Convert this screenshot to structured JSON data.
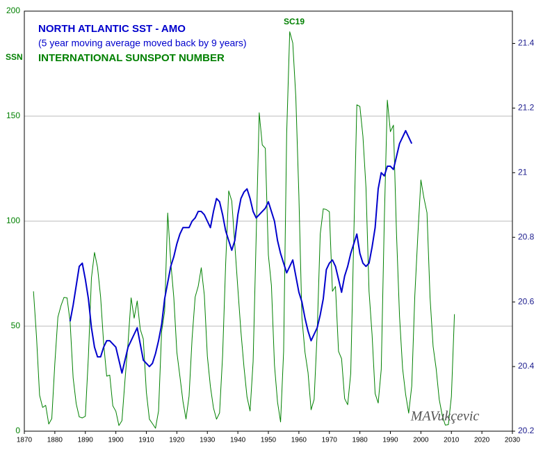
{
  "chart_data": {
    "type": "line",
    "title": "NORTH ATLANTIC SST - AMO",
    "subtitle": "(5 year moving average moved back by 9 years)",
    "ylabel": "SSN",
    "annotations": [
      "SC19",
      "MAVukçevic"
    ],
    "x": [
      1873,
      1874,
      1875,
      1876,
      1877,
      1878,
      1879,
      1880,
      1881,
      1882,
      1883,
      1884,
      1885,
      1886,
      1887,
      1888,
      1889,
      1890,
      1891,
      1892,
      1893,
      1894,
      1895,
      1896,
      1897,
      1898,
      1899,
      1900,
      1901,
      1902,
      1903,
      1904,
      1905,
      1906,
      1907,
      1908,
      1909,
      1910,
      1911,
      1912,
      1913,
      1914,
      1915,
      1916,
      1917,
      1918,
      1919,
      1920,
      1921,
      1922,
      1923,
      1924,
      1925,
      1926,
      1927,
      1928,
      1929,
      1930,
      1931,
      1932,
      1933,
      1934,
      1935,
      1936,
      1937,
      1938,
      1939,
      1940,
      1941,
      1942,
      1943,
      1944,
      1945,
      1946,
      1947,
      1948,
      1949,
      1950,
      1951,
      1952,
      1953,
      1954,
      1955,
      1956,
      1957,
      1958,
      1959,
      1960,
      1961,
      1962,
      1963,
      1964,
      1965,
      1966,
      1967,
      1968,
      1969,
      1970,
      1971,
      1972,
      1973,
      1974,
      1975,
      1976,
      1977,
      1978,
      1979,
      1980,
      1981,
      1982,
      1983,
      1984,
      1985,
      1986,
      1987,
      1988,
      1989,
      1990,
      1991,
      1992,
      1993,
      1994,
      1995,
      1996,
      1997,
      1998,
      1999,
      2000,
      2001,
      2002,
      2003,
      2004,
      2005,
      2006,
      2007,
      2008,
      2009,
      2010,
      2011
    ],
    "series": [
      {
        "name": "INTERNATIONAL SUNSPOT NUMBER",
        "color": "#008000",
        "axis": "y",
        "values": [
          66.6,
          44.7,
          17.1,
          11.3,
          12.3,
          3.4,
          6.0,
          32.3,
          54.3,
          59.7,
          63.7,
          63.5,
          52.2,
          25.4,
          13.1,
          6.8,
          6.3,
          7.1,
          35.6,
          73.0,
          85.1,
          78.0,
          64.0,
          41.8,
          26.2,
          26.7,
          12.1,
          9.5,
          2.7,
          5.0,
          24.4,
          42.0,
          63.5,
          53.8,
          62.0,
          48.5,
          43.9,
          18.6,
          5.7,
          3.6,
          1.4,
          9.6,
          47.4,
          57.1,
          103.9,
          80.6,
          63.6,
          37.6,
          26.1,
          14.2,
          5.8,
          16.7,
          44.3,
          63.9,
          69.0,
          77.8,
          64.9,
          35.7,
          21.2,
          11.1,
          5.7,
          8.7,
          36.1,
          79.7,
          114.4,
          109.6,
          88.8,
          67.8,
          47.5,
          30.6,
          16.3,
          9.6,
          33.2,
          92.6,
          151.6,
          136.3,
          134.7,
          83.9,
          69.4,
          31.5,
          13.9,
          4.4,
          38.0,
          141.7,
          190.2,
          184.8,
          159.0,
          112.3,
          53.9,
          37.6,
          27.9,
          10.2,
          15.1,
          47.0,
          93.8,
          105.9,
          105.5,
          104.5,
          66.6,
          68.9,
          38.0,
          34.5,
          15.5,
          12.6,
          27.5,
          92.5,
          155.4,
          154.6,
          140.4,
          115.9,
          66.6,
          45.9,
          17.9,
          13.4,
          29.4,
          100.2,
          157.6,
          142.6,
          145.7,
          94.3,
          54.6,
          29.9,
          17.5,
          8.6,
          21.5,
          64.3,
          93.3,
          119.6,
          111.0,
          104.0,
          63.7,
          40.4,
          29.8,
          15.2,
          7.5,
          2.9,
          3.1,
          16.5,
          55.7
        ]
      },
      {
        "name": "NORTH ATLANTIC SST - AMO",
        "color": "#0000cc",
        "axis": "y2",
        "values": [
          null,
          null,
          null,
          null,
          null,
          null,
          null,
          null,
          null,
          null,
          null,
          null,
          20.54,
          20.59,
          20.65,
          20.71,
          20.72,
          20.67,
          20.61,
          20.52,
          20.46,
          20.43,
          20.43,
          20.46,
          20.48,
          20.48,
          20.47,
          20.46,
          20.42,
          20.38,
          20.42,
          20.46,
          20.48,
          20.5,
          20.52,
          20.47,
          20.42,
          20.41,
          20.4,
          20.41,
          20.44,
          20.48,
          20.53,
          20.61,
          20.66,
          20.71,
          20.74,
          20.78,
          20.81,
          20.83,
          20.83,
          20.83,
          20.85,
          20.86,
          20.88,
          20.88,
          20.87,
          20.85,
          20.83,
          20.88,
          20.92,
          20.91,
          20.87,
          20.82,
          20.79,
          20.76,
          20.79,
          20.87,
          20.92,
          20.94,
          20.95,
          20.92,
          20.88,
          20.86,
          20.87,
          20.88,
          20.89,
          20.91,
          20.88,
          20.85,
          20.79,
          20.75,
          20.72,
          20.69,
          20.71,
          20.73,
          20.68,
          20.63,
          20.6,
          20.55,
          20.51,
          20.48,
          20.5,
          20.52,
          20.56,
          20.61,
          20.7,
          20.72,
          20.73,
          20.71,
          20.67,
          20.63,
          20.68,
          20.71,
          20.75,
          20.78,
          20.81,
          20.75,
          20.72,
          20.71,
          20.72,
          20.77,
          20.83,
          20.95,
          21.0,
          20.99,
          21.02,
          21.02,
          21.01,
          21.05,
          21.09,
          21.11,
          21.13,
          21.11,
          21.09,
          null,
          null,
          null,
          null,
          null,
          null,
          null,
          null,
          null,
          null,
          null,
          null,
          null,
          null
        ]
      }
    ],
    "xlim": [
      1870,
      2030
    ],
    "xticks": [
      1870,
      1880,
      1890,
      1900,
      1910,
      1920,
      1930,
      1940,
      1950,
      1960,
      1970,
      1980,
      1990,
      2000,
      2010,
      2020,
      2030
    ],
    "ylim": [
      0,
      200
    ],
    "yticks": [
      0,
      50,
      100,
      150,
      200
    ],
    "y2lim": [
      20.2,
      21.5
    ],
    "y2ticks": [
      20.2,
      20.4,
      20.6,
      20.8,
      21,
      21.2,
      21.4
    ],
    "grid": true
  }
}
